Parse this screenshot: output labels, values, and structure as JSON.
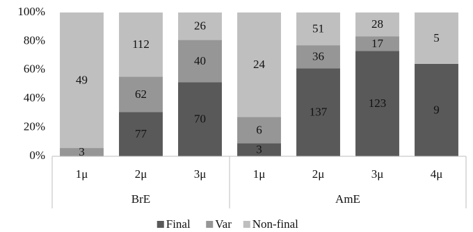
{
  "chart_data": {
    "type": "bar",
    "stacking": "percent",
    "categories": [
      "1μ",
      "2μ",
      "3μ",
      "1μ",
      "2μ",
      "3μ",
      "4μ"
    ],
    "groups": [
      {
        "name": "BrE",
        "size": 3
      },
      {
        "name": "AmE",
        "size": 4
      }
    ],
    "series": [
      {
        "name": "Final",
        "color": "#595959",
        "values": [
          0,
          77,
          70,
          3,
          137,
          123,
          9
        ]
      },
      {
        "name": "Var",
        "color": "#969696",
        "values": [
          3,
          62,
          40,
          6,
          36,
          17,
          0
        ]
      },
      {
        "name": "Non-final",
        "color": "#bfbfbf",
        "values": [
          49,
          112,
          26,
          24,
          51,
          28,
          5
        ]
      }
    ],
    "ylim": [
      0,
      100
    ],
    "yticks": [
      {
        "value": 0,
        "label": "0%"
      },
      {
        "value": 20,
        "label": "20%"
      },
      {
        "value": 40,
        "label": "40%"
      },
      {
        "value": 60,
        "label": "60%"
      },
      {
        "value": 80,
        "label": "80%"
      },
      {
        "value": 100,
        "label": "100%"
      }
    ],
    "legend": "bottom",
    "grid": false
  }
}
